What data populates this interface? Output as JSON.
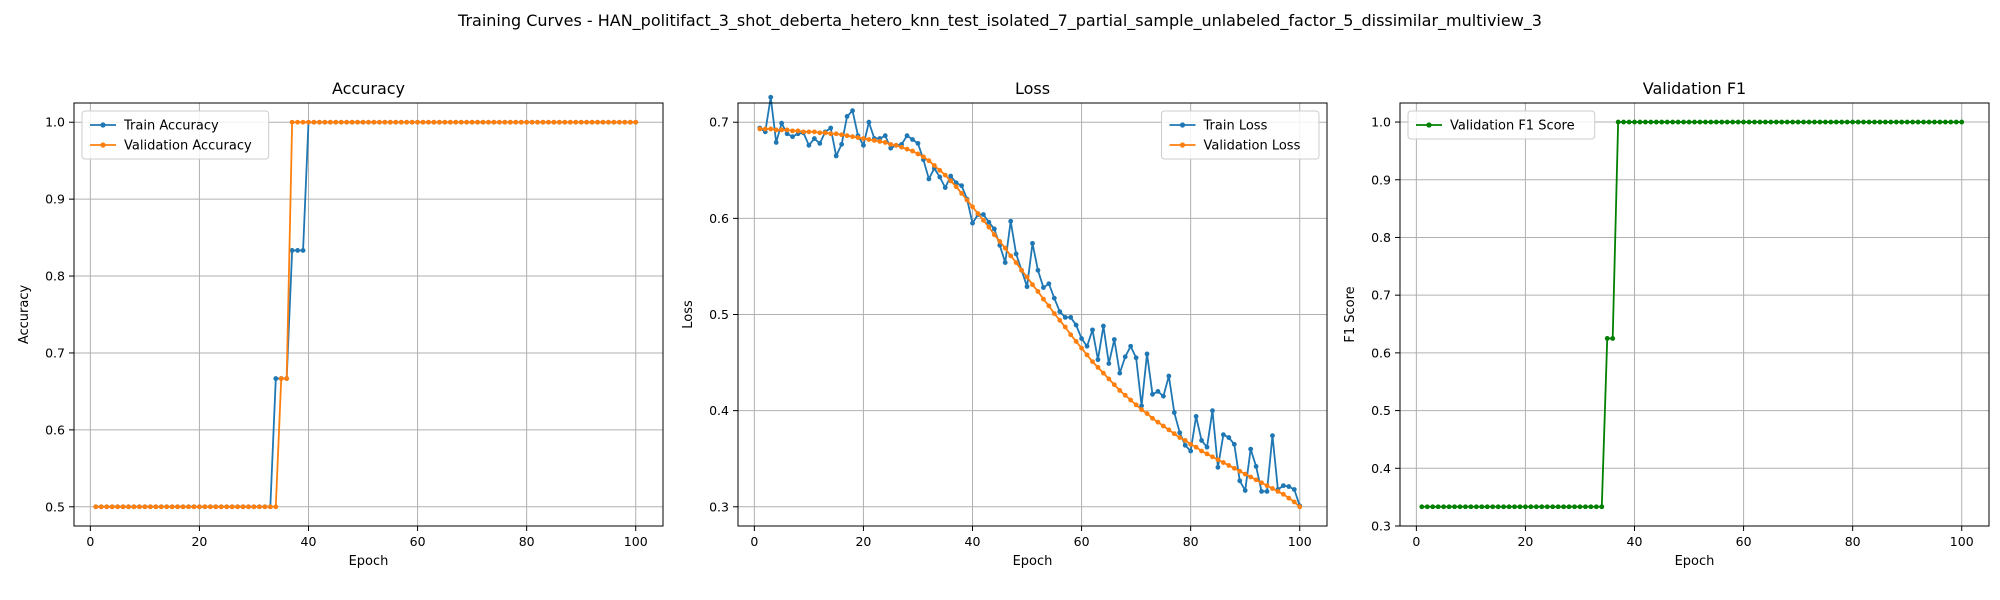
{
  "figure": {
    "suptitle": "Training Curves - HAN_politifact_3_shot_deberta_hetero_knn_test_isolated_7_partial_sample_unlabeled_factor_5_dissimilar_multiview_3"
  },
  "chart_data": [
    {
      "type": "line",
      "title": "Accuracy",
      "xlabel": "Epoch",
      "ylabel": "Accuracy",
      "xlim": [
        -3,
        105
      ],
      "ylim": [
        0.475,
        1.025
      ],
      "xticks": [
        0,
        20,
        40,
        60,
        80,
        100
      ],
      "yticks": [
        0.5,
        0.6,
        0.7,
        0.8,
        0.9,
        1.0
      ],
      "grid": true,
      "legend": "top-left",
      "series": [
        {
          "name": "Train Accuracy",
          "color": "#1f77b4",
          "segments": [
            {
              "from": 1,
              "to": 33,
              "value": 0.5
            },
            {
              "from": 34,
              "to": 36,
              "value": 0.6667
            },
            {
              "from": 37,
              "to": 39,
              "value": 0.8333
            },
            {
              "from": 40,
              "to": 100,
              "value": 1.0
            }
          ]
        },
        {
          "name": "Validation Accuracy",
          "color": "#ff7f0e",
          "segments": [
            {
              "from": 1,
              "to": 34,
              "value": 0.5
            },
            {
              "from": 35,
              "to": 36,
              "value": 0.6667
            },
            {
              "from": 37,
              "to": 100,
              "value": 1.0
            }
          ]
        }
      ]
    },
    {
      "type": "line",
      "title": "Loss",
      "xlabel": "Epoch",
      "ylabel": "Loss",
      "xlim": [
        -3,
        105
      ],
      "ylim": [
        0.28,
        0.72
      ],
      "xticks": [
        0,
        20,
        40,
        60,
        80,
        100
      ],
      "yticks": [
        0.3,
        0.4,
        0.5,
        0.6,
        0.7
      ],
      "grid": true,
      "legend": "top-right",
      "series": [
        {
          "name": "Train Loss",
          "color": "#1f77b4",
          "points": [
            [
              1,
              0.694
            ],
            [
              2,
              0.69
            ],
            [
              3,
              0.726
            ],
            [
              4,
              0.679
            ],
            [
              5,
              0.699
            ],
            [
              6,
              0.688
            ],
            [
              7,
              0.685
            ],
            [
              8,
              0.688
            ],
            [
              9,
              0.689
            ],
            [
              10,
              0.676
            ],
            [
              11,
              0.683
            ],
            [
              12,
              0.678
            ],
            [
              13,
              0.69
            ],
            [
              14,
              0.694
            ],
            [
              15,
              0.665
            ],
            [
              16,
              0.677
            ],
            [
              17,
              0.706
            ],
            [
              18,
              0.712
            ],
            [
              19,
              0.686
            ],
            [
              20,
              0.676
            ],
            [
              21,
              0.7
            ],
            [
              22,
              0.683
            ],
            [
              23,
              0.683
            ],
            [
              24,
              0.686
            ],
            [
              25,
              0.673
            ],
            [
              26,
              0.676
            ],
            [
              27,
              0.677
            ],
            [
              28,
              0.686
            ],
            [
              29,
              0.682
            ],
            [
              30,
              0.678
            ],
            [
              31,
              0.661
            ],
            [
              32,
              0.641
            ],
            [
              33,
              0.652
            ],
            [
              34,
              0.643
            ],
            [
              35,
              0.632
            ],
            [
              36,
              0.644
            ],
            [
              37,
              0.637
            ],
            [
              38,
              0.634
            ],
            [
              39,
              0.62
            ],
            [
              40,
              0.595
            ],
            [
              41,
              0.604
            ],
            [
              42,
              0.604
            ],
            [
              43,
              0.596
            ],
            [
              44,
              0.589
            ],
            [
              45,
              0.572
            ],
            [
              46,
              0.554
            ],
            [
              47,
              0.597
            ],
            [
              48,
              0.563
            ],
            [
              49,
              0.546
            ],
            [
              50,
              0.529
            ],
            [
              51,
              0.574
            ],
            [
              52,
              0.546
            ],
            [
              53,
              0.528
            ],
            [
              54,
              0.532
            ],
            [
              55,
              0.517
            ],
            [
              56,
              0.503
            ],
            [
              57,
              0.497
            ],
            [
              58,
              0.497
            ],
            [
              59,
              0.489
            ],
            [
              60,
              0.475
            ],
            [
              61,
              0.467
            ],
            [
              62,
              0.484
            ],
            [
              63,
              0.453
            ],
            [
              64,
              0.488
            ],
            [
              65,
              0.449
            ],
            [
              66,
              0.474
            ],
            [
              67,
              0.439
            ],
            [
              68,
              0.456
            ],
            [
              69,
              0.467
            ],
            [
              70,
              0.455
            ],
            [
              71,
              0.405
            ],
            [
              72,
              0.459
            ],
            [
              73,
              0.417
            ],
            [
              74,
              0.42
            ],
            [
              75,
              0.415
            ],
            [
              76,
              0.436
            ],
            [
              77,
              0.398
            ],
            [
              78,
              0.377
            ],
            [
              79,
              0.364
            ],
            [
              80,
              0.358
            ],
            [
              81,
              0.394
            ],
            [
              82,
              0.369
            ],
            [
              83,
              0.362
            ],
            [
              84,
              0.4
            ],
            [
              85,
              0.341
            ],
            [
              86,
              0.375
            ],
            [
              87,
              0.372
            ],
            [
              88,
              0.365
            ],
            [
              89,
              0.327
            ],
            [
              90,
              0.317
            ],
            [
              91,
              0.36
            ],
            [
              92,
              0.342
            ],
            [
              93,
              0.316
            ],
            [
              94,
              0.316
            ],
            [
              95,
              0.374
            ],
            [
              96,
              0.318
            ],
            [
              97,
              0.322
            ],
            [
              98,
              0.321
            ],
            [
              99,
              0.318
            ],
            [
              100,
              0.301
            ]
          ]
        },
        {
          "name": "Validation Loss",
          "color": "#ff7f0e",
          "points": [
            [
              1,
              0.693
            ],
            [
              2,
              0.693
            ],
            [
              3,
              0.693
            ],
            [
              4,
              0.692
            ],
            [
              5,
              0.692
            ],
            [
              6,
              0.692
            ],
            [
              7,
              0.691
            ],
            [
              8,
              0.691
            ],
            [
              9,
              0.69
            ],
            [
              10,
              0.69
            ],
            [
              11,
              0.69
            ],
            [
              12,
              0.689
            ],
            [
              13,
              0.689
            ],
            [
              14,
              0.688
            ],
            [
              15,
              0.688
            ],
            [
              16,
              0.687
            ],
            [
              17,
              0.686
            ],
            [
              18,
              0.685
            ],
            [
              19,
              0.684
            ],
            [
              20,
              0.683
            ],
            [
              21,
              0.682
            ],
            [
              22,
              0.681
            ],
            [
              23,
              0.68
            ],
            [
              24,
              0.679
            ],
            [
              25,
              0.677
            ],
            [
              26,
              0.676
            ],
            [
              27,
              0.674
            ],
            [
              28,
              0.672
            ],
            [
              29,
              0.67
            ],
            [
              30,
              0.667
            ],
            [
              31,
              0.664
            ],
            [
              32,
              0.66
            ],
            [
              33,
              0.655
            ],
            [
              34,
              0.65
            ],
            [
              35,
              0.645
            ],
            [
              36,
              0.639
            ],
            [
              37,
              0.633
            ],
            [
              38,
              0.626
            ],
            [
              39,
              0.619
            ],
            [
              40,
              0.612
            ],
            [
              41,
              0.605
            ],
            [
              42,
              0.598
            ],
            [
              43,
              0.591
            ],
            [
              44,
              0.583
            ],
            [
              45,
              0.576
            ],
            [
              46,
              0.569
            ],
            [
              47,
              0.561
            ],
            [
              48,
              0.554
            ],
            [
              49,
              0.546
            ],
            [
              50,
              0.539
            ],
            [
              51,
              0.531
            ],
            [
              52,
              0.524
            ],
            [
              53,
              0.516
            ],
            [
              54,
              0.509
            ],
            [
              55,
              0.501
            ],
            [
              56,
              0.494
            ],
            [
              57,
              0.487
            ],
            [
              58,
              0.479
            ],
            [
              59,
              0.472
            ],
            [
              60,
              0.465
            ],
            [
              61,
              0.458
            ],
            [
              62,
              0.451
            ],
            [
              63,
              0.445
            ],
            [
              64,
              0.439
            ],
            [
              65,
              0.433
            ],
            [
              66,
              0.427
            ],
            [
              67,
              0.421
            ],
            [
              68,
              0.416
            ],
            [
              69,
              0.411
            ],
            [
              70,
              0.406
            ],
            [
              71,
              0.401
            ],
            [
              72,
              0.397
            ],
            [
              73,
              0.392
            ],
            [
              74,
              0.388
            ],
            [
              75,
              0.384
            ],
            [
              76,
              0.38
            ],
            [
              77,
              0.376
            ],
            [
              78,
              0.372
            ],
            [
              79,
              0.369
            ],
            [
              80,
              0.365
            ],
            [
              81,
              0.362
            ],
            [
              82,
              0.358
            ],
            [
              83,
              0.355
            ],
            [
              84,
              0.352
            ],
            [
              85,
              0.349
            ],
            [
              86,
              0.346
            ],
            [
              87,
              0.343
            ],
            [
              88,
              0.34
            ],
            [
              89,
              0.337
            ],
            [
              90,
              0.334
            ],
            [
              91,
              0.331
            ],
            [
              92,
              0.328
            ],
            [
              93,
              0.325
            ],
            [
              94,
              0.322
            ],
            [
              95,
              0.319
            ],
            [
              96,
              0.316
            ],
            [
              97,
              0.313
            ],
            [
              98,
              0.309
            ],
            [
              99,
              0.305
            ],
            [
              100,
              0.3
            ]
          ]
        }
      ]
    },
    {
      "type": "line",
      "title": "Validation F1",
      "xlabel": "Epoch",
      "ylabel": "F1 Score",
      "xlim": [
        -3,
        105
      ],
      "ylim": [
        0.3,
        1.033
      ],
      "xticks": [
        0,
        20,
        40,
        60,
        80,
        100
      ],
      "yticks": [
        0.3,
        0.4,
        0.5,
        0.6,
        0.7,
        0.8,
        0.9,
        1.0
      ],
      "grid": true,
      "legend": "top-left",
      "series": [
        {
          "name": "Validation F1 Score",
          "color": "#008000",
          "segments": [
            {
              "from": 1,
              "to": 34,
              "value": 0.3333
            },
            {
              "from": 35,
              "to": 36,
              "value": 0.625
            },
            {
              "from": 37,
              "to": 100,
              "value": 1.0
            }
          ]
        }
      ]
    }
  ]
}
